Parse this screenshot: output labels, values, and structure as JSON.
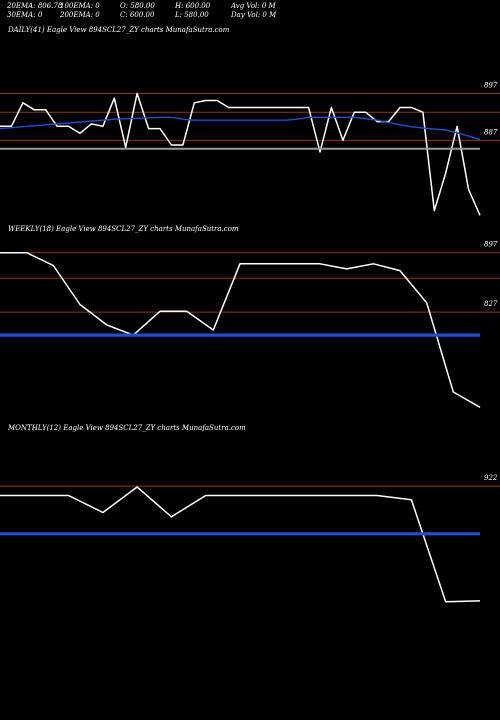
{
  "header": {
    "ema20": "20EMA: 806.78",
    "ema100": "100EMA: 0",
    "open": "O: 580.00",
    "high": "H: 600.00",
    "avg_vol": "Avg Vol: 0  M",
    "ema30": "30EMA: 0",
    "ema200": "200EMA: 0",
    "close": "C: 600.00",
    "low": "L: 580.00",
    "day_vol": "Day Vol: 0  M"
  },
  "colors": {
    "price": "#ffffff",
    "ema": "#1f4fd6",
    "level": "#8b3a1a",
    "background": "#000000"
  },
  "chart_data": [
    {
      "type": "line",
      "title": "DAILY(41) Eagle  View  894SCL27_ZY charts MunafaSutra.com",
      "y_ticks": [
        897,
        887
      ],
      "y_tick_labels": [
        "897",
        "887"
      ],
      "ylim": [
        870,
        902
      ],
      "levels": [
        897,
        893,
        887
      ],
      "series": [
        {
          "role": "price",
          "values": [
            890,
            890,
            895,
            893.5,
            893.5,
            890,
            890,
            888.5,
            890.5,
            890,
            896,
            885.5,
            897,
            889.5,
            889.5,
            886,
            886,
            895,
            895.5,
            895.5,
            894,
            894,
            894,
            894,
            894,
            894,
            894,
            894,
            884.5,
            894,
            887,
            893,
            893,
            891,
            891,
            894,
            894,
            893,
            872,
            880,
            890,
            876.5,
            871
          ]
        },
        {
          "role": "ema",
          "values": [
            889.5,
            889.7,
            889.9,
            890.1,
            890.3,
            890.5,
            890.7,
            890.9,
            891.1,
            891.3,
            891.5,
            891.6,
            891.7,
            891.8,
            891.9,
            891.9,
            891.5,
            891.3,
            891.3,
            891.3,
            891.3,
            891.3,
            891.3,
            891.3,
            891.3,
            891.3,
            891.5,
            891.9,
            891.9,
            891.9,
            891.9,
            891.9,
            891.6,
            891.3,
            890.8,
            890.3,
            889.9,
            889.6,
            889.4,
            889.2,
            888.6,
            887.9,
            887.2
          ]
        }
      ]
    },
    {
      "type": "line",
      "title": "WEEKLY(18) Eagle  View  894SCL27_ZY charts MunafaSutra.com",
      "y_ticks": [
        897,
        827
      ],
      "y_tick_labels": [
        "897",
        "827"
      ],
      "ylim": [
        700,
        912
      ],
      "levels": [
        897,
        867,
        827
      ],
      "series": [
        {
          "role": "price",
          "values": [
            897,
            897,
            882,
            836,
            812,
            800,
            828,
            828,
            806,
            884,
            884,
            884,
            884,
            878,
            884,
            876,
            838,
            733,
            715
          ]
        },
        {
          "role": "ema",
          "values": [
            800,
            800,
            800,
            800,
            800,
            800,
            800,
            800,
            800,
            800,
            800,
            800,
            800,
            800,
            800,
            800,
            800,
            800,
            800
          ]
        }
      ]
    },
    {
      "type": "line",
      "title": "MONTHLY(12) Eagle  View  894SCL27_ZY charts MunafaSutra.com",
      "y_ticks": [
        922
      ],
      "y_tick_labels": [
        "922"
      ],
      "ylim": [
        560,
        960
      ],
      "levels": [
        922
      ],
      "series": [
        {
          "role": "price",
          "values": [
            900,
            900,
            900,
            860,
            920,
            850,
            900,
            900,
            900,
            900,
            900,
            900,
            890,
            650,
            652
          ]
        },
        {
          "role": "ema",
          "values": [
            810,
            810,
            810,
            810,
            810,
            810,
            810,
            810,
            810,
            810,
            810,
            810,
            810,
            810,
            810
          ]
        }
      ]
    }
  ]
}
